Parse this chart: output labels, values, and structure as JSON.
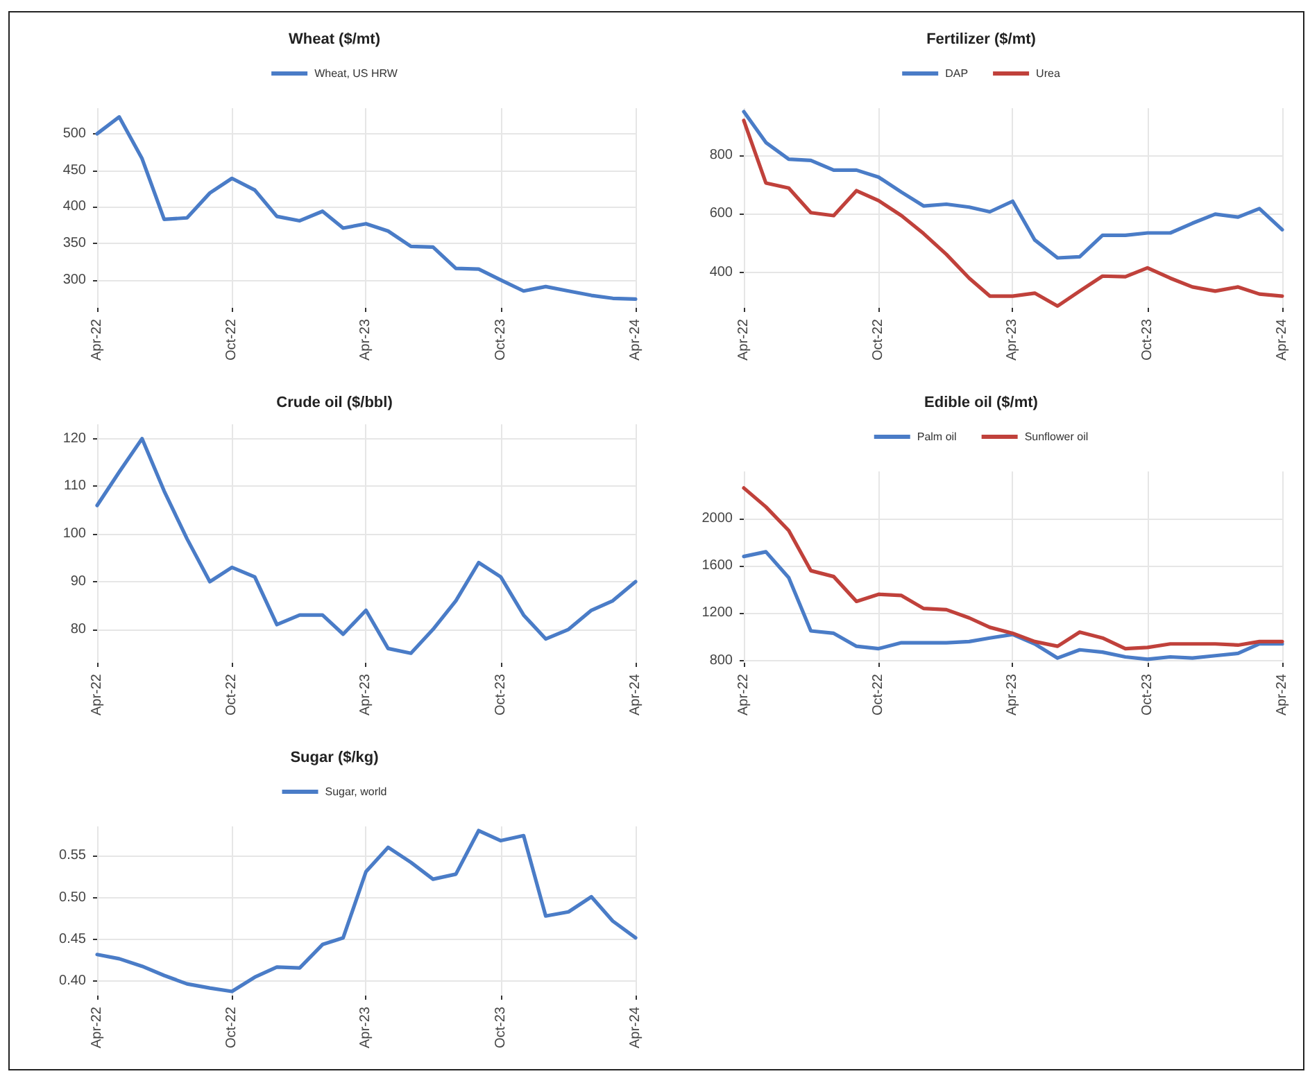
{
  "chart_data": [
    {
      "type": "line",
      "title": "Wheat ($/mt)",
      "legend": "top",
      "grid": true,
      "line_style": "solid",
      "marker": "none",
      "xlim": [
        "2022-04",
        "2024-04"
      ],
      "xticks": [
        {
          "value": "2022-04",
          "label": "Apr-22"
        },
        {
          "value": "2022-10",
          "label": "Oct-22"
        },
        {
          "value": "2023-04",
          "label": "Apr-23"
        },
        {
          "value": "2023-10",
          "label": "Oct-23"
        },
        {
          "value": "2024-04",
          "label": "Apr-24"
        }
      ],
      "ylim": [
        262,
        535
      ],
      "yticks": [
        300,
        350,
        400,
        450,
        500
      ],
      "x": [
        "2022-04",
        "2022-05",
        "2022-06",
        "2022-07",
        "2022-08",
        "2022-09",
        "2022-10",
        "2022-11",
        "2022-12",
        "2023-01",
        "2023-02",
        "2023-03",
        "2023-04",
        "2023-05",
        "2023-06",
        "2023-07",
        "2023-08",
        "2023-09",
        "2023-10",
        "2023-11",
        "2023-12",
        "2024-01",
        "2024-02",
        "2024-03",
        "2024-04"
      ],
      "series": [
        {
          "name": "Wheat, US HRW",
          "color": "#4a7cc7",
          "values": [
            500,
            523,
            466,
            383,
            385,
            419,
            439,
            423,
            387,
            381,
            394,
            371,
            377,
            367,
            346,
            345,
            316,
            315,
            300,
            285,
            291,
            285,
            279,
            275,
            274
          ]
        }
      ]
    },
    {
      "type": "line",
      "title": "Fertilizer ($/mt)",
      "legend": "top",
      "grid": true,
      "line_style": "solid",
      "marker": "none",
      "xlim": [
        "2022-04",
        "2024-04"
      ],
      "xticks": [
        {
          "value": "2022-04",
          "label": "Apr-22"
        },
        {
          "value": "2022-10",
          "label": "Oct-22"
        },
        {
          "value": "2023-04",
          "label": "Apr-23"
        },
        {
          "value": "2023-10",
          "label": "Oct-23"
        },
        {
          "value": "2024-04",
          "label": "Apr-24"
        }
      ],
      "ylim": [
        280,
        960
      ],
      "yticks": [
        400,
        600,
        800
      ],
      "x": [
        "2022-04",
        "2022-05",
        "2022-06",
        "2022-07",
        "2022-08",
        "2022-09",
        "2022-10",
        "2022-11",
        "2022-12",
        "2023-01",
        "2023-02",
        "2023-03",
        "2023-04",
        "2023-05",
        "2023-06",
        "2023-07",
        "2023-08",
        "2023-09",
        "2023-10",
        "2023-11",
        "2023-12",
        "2024-01",
        "2024-02",
        "2024-03",
        "2024-04"
      ],
      "series": [
        {
          "name": "DAP",
          "color": "#4a7cc7",
          "values": [
            948,
            843,
            786,
            782,
            749,
            749,
            725,
            674,
            627,
            633,
            623,
            607,
            643,
            511,
            450,
            454,
            527,
            527,
            535,
            535,
            568,
            599,
            589,
            618,
            546
          ]
        },
        {
          "name": "Urea",
          "color": "#c0413b",
          "values": [
            918,
            705,
            688,
            604,
            594,
            679,
            645,
            594,
            533,
            462,
            381,
            320,
            320,
            330,
            286,
            337,
            388,
            386,
            416,
            381,
            351,
            337,
            351,
            327,
            320
          ]
        }
      ]
    },
    {
      "type": "line",
      "title": "Crude oil ($/bbl)",
      "legend": false,
      "grid": true,
      "line_style": "solid",
      "marker": "none",
      "xlim": [
        "2022-04",
        "2024-04"
      ],
      "xticks": [
        {
          "value": "2022-04",
          "label": "Apr-22"
        },
        {
          "value": "2022-10",
          "label": "Oct-22"
        },
        {
          "value": "2023-04",
          "label": "Apr-23"
        },
        {
          "value": "2023-10",
          "label": "Oct-23"
        },
        {
          "value": "2024-04",
          "label": "Apr-24"
        }
      ],
      "ylim": [
        73,
        123
      ],
      "yticks": [
        80,
        90,
        100,
        110,
        120
      ],
      "x": [
        "2022-04",
        "2022-05",
        "2022-06",
        "2022-07",
        "2022-08",
        "2022-09",
        "2022-10",
        "2022-11",
        "2022-12",
        "2023-01",
        "2023-02",
        "2023-03",
        "2023-04",
        "2023-05",
        "2023-06",
        "2023-07",
        "2023-08",
        "2023-09",
        "2023-10",
        "2023-11",
        "2023-12",
        "2024-01",
        "2024-02",
        "2024-03",
        "2024-04"
      ],
      "series": [
        {
          "color": "#4a7cc7",
          "values": [
            106,
            113,
            120,
            109,
            99,
            90,
            93,
            91,
            81,
            83,
            83,
            79,
            84,
            76,
            75,
            80,
            86,
            94,
            91,
            83,
            78,
            80,
            84,
            86,
            90
          ]
        }
      ]
    },
    {
      "type": "line",
      "title": "Edible oil ($/mt)",
      "legend": "top",
      "grid": true,
      "line_style": "solid",
      "marker": "none",
      "xlim": [
        "2022-04",
        "2024-04"
      ],
      "xticks": [
        {
          "value": "2022-04",
          "label": "Apr-22"
        },
        {
          "value": "2022-10",
          "label": "Oct-22"
        },
        {
          "value": "2023-04",
          "label": "Apr-23"
        },
        {
          "value": "2023-10",
          "label": "Oct-23"
        },
        {
          "value": "2024-04",
          "label": "Apr-24"
        }
      ],
      "ylim": [
        780,
        2400
      ],
      "yticks": [
        800,
        1200,
        1600,
        2000
      ],
      "x": [
        "2022-04",
        "2022-05",
        "2022-06",
        "2022-07",
        "2022-08",
        "2022-09",
        "2022-10",
        "2022-11",
        "2022-12",
        "2023-01",
        "2023-02",
        "2023-03",
        "2023-04",
        "2023-05",
        "2023-06",
        "2023-07",
        "2023-08",
        "2023-09",
        "2023-10",
        "2023-11",
        "2023-12",
        "2024-01",
        "2024-02",
        "2024-03",
        "2024-04"
      ],
      "series": [
        {
          "name": "Palm oil",
          "color": "#4a7cc7",
          "values": [
            1680,
            1720,
            1500,
            1050,
            1030,
            920,
            900,
            950,
            950,
            950,
            960,
            990,
            1020,
            940,
            820,
            890,
            870,
            830,
            810,
            830,
            820,
            840,
            860,
            940,
            940
          ]
        },
        {
          "name": "Sunflower oil",
          "color": "#c0413b",
          "values": [
            2260,
            2100,
            1900,
            1560,
            1510,
            1300,
            1360,
            1350,
            1240,
            1230,
            1160,
            1080,
            1030,
            960,
            920,
            1040,
            990,
            900,
            910,
            940,
            940,
            940,
            930,
            960,
            960
          ]
        }
      ]
    },
    {
      "type": "line",
      "title": "Sugar ($/kg)",
      "legend": "top",
      "grid": true,
      "line_style": "solid",
      "marker": "none",
      "xlim": [
        "2022-04",
        "2024-04"
      ],
      "xticks": [
        {
          "value": "2022-04",
          "label": "Apr-22"
        },
        {
          "value": "2022-10",
          "label": "Oct-22"
        },
        {
          "value": "2023-04",
          "label": "Apr-23"
        },
        {
          "value": "2023-10",
          "label": "Oct-23"
        },
        {
          "value": "2024-04",
          "label": "Apr-24"
        }
      ],
      "ylim": [
        0.383,
        0.585
      ],
      "yticks": [
        {
          "value": 0.4,
          "label": "0.40"
        },
        {
          "value": 0.45,
          "label": "0.45"
        },
        {
          "value": 0.5,
          "label": "0.50"
        },
        {
          "value": 0.55,
          "label": "0.55"
        }
      ],
      "x": [
        "2022-04",
        "2022-05",
        "2022-06",
        "2022-07",
        "2022-08",
        "2022-09",
        "2022-10",
        "2022-11",
        "2022-12",
        "2023-01",
        "2023-02",
        "2023-03",
        "2023-04",
        "2023-05",
        "2023-06",
        "2023-07",
        "2023-08",
        "2023-09",
        "2023-10",
        "2023-11",
        "2023-12",
        "2024-01",
        "2024-02",
        "2024-03",
        "2024-04"
      ],
      "series": [
        {
          "name": "Sugar, world",
          "color": "#4a7cc7",
          "values": [
            0.432,
            0.427,
            0.418,
            0.407,
            0.397,
            0.392,
            0.388,
            0.405,
            0.417,
            0.416,
            0.444,
            0.452,
            0.531,
            0.56,
            0.542,
            0.522,
            0.528,
            0.58,
            0.568,
            0.574,
            0.478,
            0.483,
            0.501,
            0.472,
            0.452
          ]
        }
      ]
    }
  ]
}
